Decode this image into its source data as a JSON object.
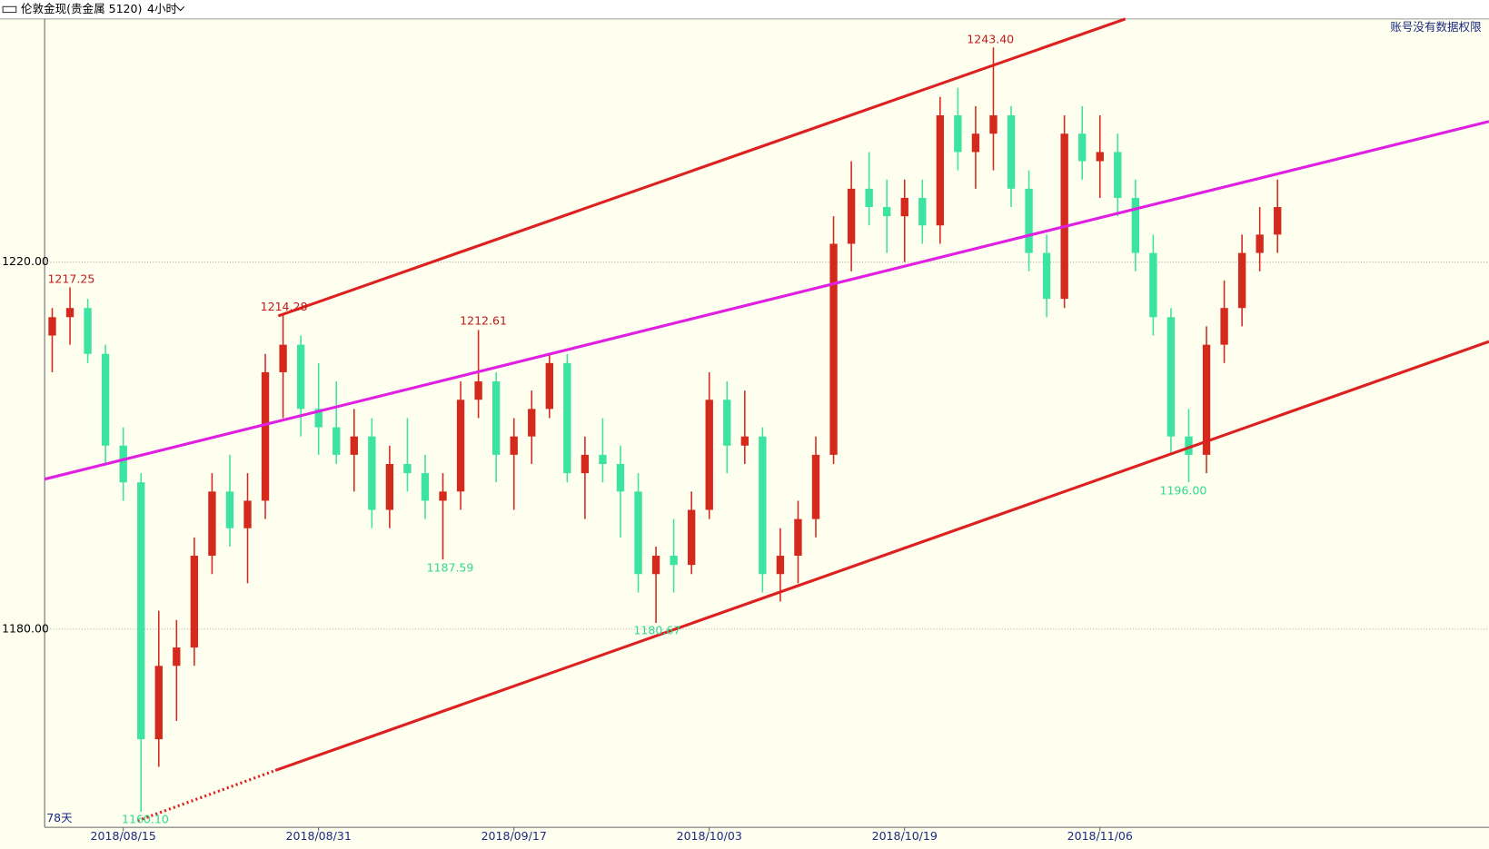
{
  "chart_data": {
    "type": "candlestick",
    "title": "伦敦金现(贵金属 5120)",
    "period": "4小时",
    "notice": "账号没有数据权限",
    "range_label": "78天",
    "categories": [
      null,
      null,
      null,
      null,
      "2018/08/15",
      null,
      null,
      null,
      null,
      null,
      null,
      null,
      null,
      null,
      null,
      "2018/08/31",
      null,
      null,
      null,
      null,
      null,
      null,
      null,
      null,
      null,
      null,
      "2018/09/17",
      null,
      null,
      null,
      null,
      null,
      null,
      null,
      null,
      null,
      null,
      "2018/10/03",
      null,
      null,
      null,
      null,
      null,
      null,
      null,
      null,
      null,
      null,
      "2018/10/19",
      null,
      null,
      null,
      null,
      null,
      null,
      null,
      null,
      null,
      null,
      "2018/11/06",
      null,
      null,
      null,
      null,
      null,
      null,
      null,
      null,
      null,
      null
    ],
    "open": [
      1212,
      1214,
      1215,
      1210,
      1200,
      1196,
      1168,
      1176,
      1178,
      1188,
      1195,
      1191,
      1194,
      1208,
      1211,
      1204,
      1202,
      1199,
      1201,
      1193,
      1198,
      1197,
      1194,
      1195,
      1205,
      1207,
      1199,
      1201,
      1204,
      1209,
      1197,
      1199,
      1198,
      1195,
      1186,
      1188,
      1187,
      1193,
      1205,
      1200,
      1201,
      1186,
      1188,
      1192,
      1199,
      1222,
      1228,
      1226,
      1225,
      1227,
      1224,
      1236,
      1232,
      1234,
      1236,
      1228,
      1221,
      1216,
      1234,
      1231,
      1232,
      1227,
      1221,
      1214,
      1201,
      1199,
      1211,
      1215,
      1221,
      1223
    ],
    "high": [
      1215,
      1217.25,
      1216,
      1211,
      1202,
      1197,
      1182,
      1181,
      1190,
      1197,
      1199,
      1197,
      1210,
      1214.28,
      1212,
      1209,
      1207,
      1204,
      1203,
      1200,
      1203,
      1199,
      1197,
      1207,
      1212.61,
      1208,
      1203,
      1206,
      1210,
      1210,
      1201,
      1203,
      1200,
      1197,
      1189,
      1192,
      1195,
      1208,
      1207,
      1206,
      1202,
      1191,
      1194,
      1201,
      1225,
      1231,
      1232,
      1229,
      1229,
      1229,
      1238,
      1239,
      1237,
      1243.4,
      1237,
      1230,
      1223,
      1236,
      1237,
      1236,
      1234,
      1229,
      1223,
      1215,
      1204,
      1213,
      1218,
      1223,
      1226,
      1229
    ],
    "low": [
      1208,
      1211,
      1209,
      1198,
      1194,
      1160.1,
      1165,
      1170,
      1176,
      1186,
      1189,
      1185,
      1192,
      1203,
      1201,
      1199,
      1198,
      1195,
      1191,
      1191,
      1195,
      1192,
      1187.59,
      1193,
      1203,
      1196,
      1193,
      1198,
      1203,
      1196,
      1192,
      1196,
      1190,
      1184,
      1180.67,
      1184,
      1186,
      1192,
      1197,
      1198,
      1184,
      1183,
      1185,
      1190,
      1198,
      1219,
      1224,
      1221,
      1220,
      1222,
      1222,
      1230,
      1228,
      1230,
      1226,
      1219,
      1214,
      1215,
      1229,
      1227,
      1225,
      1219,
      1212,
      1199,
      1196.0,
      1197,
      1209,
      1213,
      1219,
      1221
    ],
    "close": [
      1214,
      1215,
      1210,
      1200,
      1196,
      1168,
      1176,
      1178,
      1188,
      1195,
      1191,
      1194,
      1208,
      1211,
      1204,
      1202,
      1199,
      1201,
      1193,
      1198,
      1197,
      1194,
      1195,
      1205,
      1207,
      1199,
      1201,
      1204,
      1209,
      1197,
      1199,
      1198,
      1195,
      1186,
      1188,
      1187,
      1193,
      1205,
      1200,
      1201,
      1186,
      1188,
      1192,
      1199,
      1222,
      1228,
      1226,
      1225,
      1227,
      1224,
      1236,
      1232,
      1234,
      1236,
      1228,
      1221,
      1216,
      1234,
      1231,
      1232,
      1227,
      1221,
      1214,
      1201,
      1199,
      1211,
      1215,
      1221,
      1223,
      1226
    ],
    "up_color": "#d42a1e",
    "down_color": "#3de3a0",
    "ylim": [
      1158.4,
      1246.5
    ],
    "yticks": [
      {
        "value": 1220,
        "label": "1220.00"
      },
      {
        "value": 1180,
        "label": "1180.00"
      }
    ],
    "grid": true,
    "annotations": [
      "1217.25",
      "1214.28",
      "1212.61",
      "1243.40",
      "1187.59",
      "1180.67",
      "1196.00",
      "1160.10"
    ]
  }
}
